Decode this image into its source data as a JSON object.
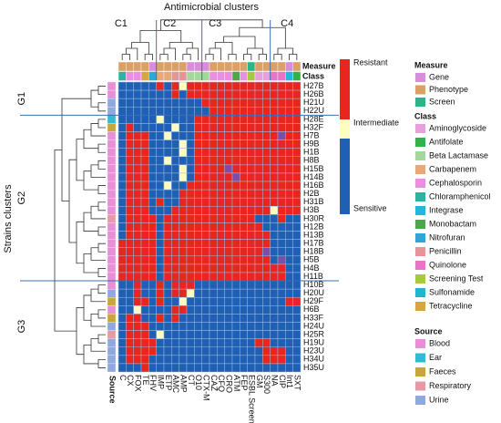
{
  "chart_data": {
    "type": "heatmap",
    "title": "Antimicrobial clusters",
    "y_title": "Strains clusters",
    "column_clusters": [
      "C1",
      "C2",
      "C3",
      "C4"
    ],
    "row_clusters": [
      "G1",
      "G2",
      "G3"
    ],
    "measure_label": "Measure",
    "class_label": "Class",
    "source_label": "Source",
    "scale_labels": [
      "Sensitive",
      "Intermediate",
      "Resistant"
    ],
    "cell_colors": [
      "#1f5fb4",
      "#fdfdc0",
      "#e8251f",
      "#7a4fa8"
    ],
    "legends": {
      "measure": {
        "title": "Measure",
        "items": [
          {
            "name": "Gene",
            "color": "#d98cd9"
          },
          {
            "name": "Phenotype",
            "color": "#dba066"
          },
          {
            "name": "Screen",
            "color": "#2bb589"
          }
        ]
      },
      "class": {
        "title": "Class",
        "items": [
          {
            "name": "Aminoglycoside",
            "color": "#e6a0dc"
          },
          {
            "name": "Antifolate",
            "color": "#2fb34a"
          },
          {
            "name": "Beta Lactamase",
            "color": "#a5d69a"
          },
          {
            "name": "Carbapenem",
            "color": "#e8a87c"
          },
          {
            "name": "Cephalosporin",
            "color": "#ea8fe0"
          },
          {
            "name": "Chloramphenicol",
            "color": "#2bb5a0"
          },
          {
            "name": "Integrase",
            "color": "#26b5e0"
          },
          {
            "name": "Monobactam",
            "color": "#4aa84a"
          },
          {
            "name": "Nitrofuran",
            "color": "#33a4d6"
          },
          {
            "name": "Penicillin",
            "color": "#e6949a"
          },
          {
            "name": "Quinolone",
            "color": "#e873c8"
          },
          {
            "name": "Screening Test",
            "color": "#a8c93c"
          },
          {
            "name": "Sulfonamide",
            "color": "#1fb8c8"
          },
          {
            "name": "Tetracycline",
            "color": "#d6a640"
          }
        ]
      },
      "source": {
        "title": "Source",
        "items": [
          {
            "name": "Blood",
            "color": "#e88fd8"
          },
          {
            "name": "Ear",
            "color": "#33b8d8"
          },
          {
            "name": "Faeces",
            "color": "#c9a63a"
          },
          {
            "name": "Respiratory",
            "color": "#e59aa6"
          },
          {
            "name": "Urine",
            "color": "#8fa8e0"
          }
        ]
      }
    },
    "columns": [
      {
        "label": "C",
        "measure": 1,
        "class": 5
      },
      {
        "label": "CX",
        "measure": 1,
        "class": 4
      },
      {
        "label": "FOX",
        "measure": 1,
        "class": 4
      },
      {
        "label": "TE",
        "measure": 1,
        "class": 13
      },
      {
        "label": "FHV",
        "measure": 0,
        "class": 8
      },
      {
        "label": "IMP",
        "measure": 1,
        "class": 3
      },
      {
        "label": "ETP",
        "measure": 1,
        "class": 3
      },
      {
        "label": "AMC",
        "measure": 1,
        "class": 9
      },
      {
        "label": "AMP",
        "measure": 1,
        "class": 9
      },
      {
        "label": "CT",
        "measure": 0,
        "class": 2
      },
      {
        "label": "O10",
        "measure": 0,
        "class": 2
      },
      {
        "label": "CTX-M",
        "measure": 0,
        "class": 2
      },
      {
        "label": "CAZ",
        "measure": 1,
        "class": 4
      },
      {
        "label": "CFQ",
        "measure": 1,
        "class": 4
      },
      {
        "label": "CRO",
        "measure": 1,
        "class": 4
      },
      {
        "label": "ATM",
        "measure": 1,
        "class": 7
      },
      {
        "label": "FEP",
        "measure": 1,
        "class": 4
      },
      {
        "label": "ESBL Screen",
        "measure": 2,
        "class": 11
      },
      {
        "label": "GM",
        "measure": 1,
        "class": 0
      },
      {
        "label": "S300",
        "measure": 1,
        "class": 0
      },
      {
        "label": "NA",
        "measure": 1,
        "class": 10
      },
      {
        "label": "CIP",
        "measure": 1,
        "class": 10
      },
      {
        "label": "Int1",
        "measure": 0,
        "class": 6
      },
      {
        "label": "SXT",
        "measure": 1,
        "class": 1
      }
    ],
    "rows": [
      {
        "label": "H27B",
        "source": 0,
        "cells": [
          0,
          0,
          0,
          0,
          0,
          2,
          0,
          2,
          1,
          2,
          2,
          2,
          2,
          2,
          2,
          2,
          2,
          2,
          2,
          2,
          2,
          2,
          2,
          2
        ]
      },
      {
        "label": "H26B",
        "source": 0,
        "cells": [
          0,
          0,
          0,
          0,
          0,
          0,
          0,
          2,
          0,
          2,
          2,
          2,
          2,
          2,
          2,
          2,
          2,
          2,
          2,
          2,
          2,
          2,
          2,
          2
        ]
      },
      {
        "label": "H21U",
        "source": 4,
        "cells": [
          0,
          0,
          0,
          0,
          0,
          0,
          0,
          0,
          0,
          0,
          0,
          2,
          2,
          2,
          2,
          2,
          2,
          2,
          2,
          2,
          2,
          2,
          2,
          2
        ]
      },
      {
        "label": "H22U",
        "source": 4,
        "cells": [
          0,
          0,
          0,
          0,
          0,
          0,
          0,
          0,
          0,
          0,
          0,
          0,
          2,
          2,
          2,
          2,
          2,
          2,
          2,
          2,
          2,
          2,
          2,
          2
        ]
      },
      {
        "label": "H28E",
        "source": 1,
        "cells": [
          0,
          0,
          0,
          0,
          0,
          1,
          0,
          0,
          0,
          0,
          2,
          2,
          2,
          2,
          2,
          2,
          2,
          2,
          2,
          2,
          2,
          2,
          2,
          2
        ]
      },
      {
        "label": "H32F",
        "source": 2,
        "cells": [
          0,
          2,
          0,
          0,
          0,
          0,
          0,
          1,
          0,
          0,
          2,
          2,
          2,
          2,
          2,
          2,
          2,
          2,
          2,
          2,
          2,
          2,
          2,
          2
        ]
      },
      {
        "label": "H7B",
        "source": 0,
        "cells": [
          0,
          2,
          2,
          2,
          0,
          0,
          1,
          0,
          0,
          0,
          2,
          2,
          2,
          2,
          2,
          2,
          2,
          2,
          2,
          2,
          2,
          3,
          2,
          2
        ]
      },
      {
        "label": "H9B",
        "source": 0,
        "cells": [
          0,
          2,
          2,
          2,
          0,
          0,
          0,
          0,
          1,
          0,
          2,
          2,
          2,
          2,
          2,
          2,
          2,
          2,
          2,
          2,
          2,
          2,
          2,
          2
        ]
      },
      {
        "label": "H1B",
        "source": 0,
        "cells": [
          0,
          2,
          2,
          2,
          0,
          0,
          0,
          0,
          1,
          0,
          2,
          2,
          2,
          2,
          2,
          2,
          2,
          2,
          2,
          2,
          2,
          2,
          2,
          2
        ]
      },
      {
        "label": "H8B",
        "source": 0,
        "cells": [
          0,
          2,
          2,
          2,
          0,
          0,
          1,
          0,
          0,
          0,
          2,
          2,
          2,
          2,
          2,
          2,
          2,
          2,
          2,
          2,
          2,
          2,
          2,
          2
        ]
      },
      {
        "label": "H15B",
        "source": 0,
        "cells": [
          0,
          2,
          2,
          2,
          0,
          0,
          0,
          0,
          1,
          0,
          2,
          2,
          2,
          2,
          3,
          2,
          2,
          2,
          2,
          2,
          2,
          2,
          2,
          2
        ]
      },
      {
        "label": "H14B",
        "source": 0,
        "cells": [
          0,
          2,
          2,
          2,
          0,
          0,
          0,
          0,
          1,
          0,
          2,
          2,
          2,
          2,
          2,
          3,
          2,
          2,
          2,
          2,
          2,
          2,
          2,
          2
        ]
      },
      {
        "label": "H16B",
        "source": 0,
        "cells": [
          0,
          2,
          2,
          2,
          0,
          0,
          1,
          0,
          0,
          2,
          2,
          2,
          2,
          2,
          2,
          2,
          2,
          2,
          2,
          2,
          2,
          2,
          2,
          2
        ]
      },
      {
        "label": "H2B",
        "source": 0,
        "cells": [
          0,
          2,
          2,
          2,
          0,
          0,
          0,
          0,
          2,
          2,
          2,
          2,
          2,
          2,
          2,
          2,
          2,
          2,
          2,
          2,
          2,
          2,
          2,
          2
        ]
      },
      {
        "label": "H31B",
        "source": 0,
        "cells": [
          0,
          2,
          2,
          2,
          0,
          2,
          0,
          0,
          2,
          2,
          2,
          2,
          2,
          2,
          2,
          2,
          2,
          2,
          2,
          2,
          2,
          2,
          2,
          2
        ]
      },
      {
        "label": "H3B",
        "source": 0,
        "cells": [
          0,
          2,
          2,
          2,
          0,
          0,
          0,
          2,
          2,
          2,
          2,
          2,
          2,
          2,
          2,
          2,
          2,
          2,
          2,
          2,
          1,
          2,
          2,
          2
        ]
      },
      {
        "label": "H30R",
        "source": 3,
        "cells": [
          0,
          2,
          2,
          2,
          2,
          0,
          2,
          2,
          2,
          2,
          2,
          2,
          2,
          2,
          2,
          2,
          2,
          2,
          0,
          0,
          0,
          2,
          0,
          0
        ]
      },
      {
        "label": "H12B",
        "source": 0,
        "cells": [
          0,
          2,
          2,
          2,
          2,
          0,
          2,
          2,
          2,
          2,
          2,
          2,
          2,
          2,
          2,
          2,
          2,
          2,
          2,
          0,
          0,
          0,
          0,
          0
        ]
      },
      {
        "label": "H13B",
        "source": 0,
        "cells": [
          0,
          2,
          2,
          2,
          2,
          0,
          2,
          2,
          2,
          2,
          2,
          2,
          2,
          2,
          2,
          2,
          2,
          2,
          2,
          2,
          0,
          0,
          0,
          0
        ]
      },
      {
        "label": "H17B",
        "source": 0,
        "cells": [
          2,
          2,
          2,
          2,
          2,
          0,
          2,
          2,
          2,
          2,
          2,
          2,
          2,
          2,
          2,
          2,
          2,
          2,
          2,
          2,
          0,
          0,
          0,
          0
        ]
      },
      {
        "label": "H18B",
        "source": 0,
        "cells": [
          2,
          2,
          2,
          2,
          2,
          0,
          2,
          2,
          2,
          2,
          2,
          2,
          2,
          2,
          2,
          2,
          2,
          2,
          2,
          3,
          0,
          0,
          0,
          0
        ]
      },
      {
        "label": "H5B",
        "source": 0,
        "cells": [
          2,
          2,
          2,
          2,
          2,
          0,
          2,
          2,
          2,
          2,
          2,
          2,
          2,
          2,
          2,
          2,
          2,
          2,
          2,
          2,
          0,
          3,
          0,
          0
        ]
      },
      {
        "label": "H4B",
        "source": 0,
        "cells": [
          2,
          2,
          2,
          2,
          2,
          0,
          2,
          2,
          2,
          2,
          2,
          2,
          2,
          2,
          2,
          2,
          2,
          2,
          2,
          2,
          2,
          2,
          0,
          0
        ]
      },
      {
        "label": "H11B",
        "source": 0,
        "cells": [
          2,
          2,
          2,
          2,
          2,
          0,
          2,
          2,
          2,
          2,
          2,
          2,
          2,
          2,
          2,
          2,
          2,
          2,
          2,
          2,
          2,
          2,
          0,
          0
        ]
      },
      {
        "label": "H10B",
        "source": 0,
        "cells": [
          0,
          0,
          2,
          0,
          0,
          2,
          0,
          2,
          2,
          2,
          0,
          0,
          0,
          0,
          0,
          0,
          0,
          0,
          0,
          0,
          0,
          0,
          0,
          0
        ]
      },
      {
        "label": "H20U",
        "source": 4,
        "cells": [
          0,
          0,
          2,
          0,
          0,
          2,
          0,
          2,
          2,
          1,
          0,
          0,
          0,
          0,
          0,
          0,
          0,
          0,
          0,
          0,
          0,
          0,
          0,
          0
        ]
      },
      {
        "label": "H29F",
        "source": 2,
        "cells": [
          0,
          0,
          2,
          2,
          0,
          2,
          0,
          0,
          1,
          0,
          0,
          0,
          0,
          0,
          0,
          0,
          0,
          0,
          0,
          0,
          0,
          0,
          2,
          2
        ]
      },
      {
        "label": "H6B",
        "source": 0,
        "cells": [
          0,
          0,
          1,
          0,
          0,
          0,
          0,
          2,
          2,
          0,
          0,
          0,
          0,
          0,
          0,
          0,
          0,
          0,
          0,
          0,
          0,
          0,
          0,
          0
        ]
      },
      {
        "label": "H33F",
        "source": 2,
        "cells": [
          0,
          2,
          2,
          0,
          0,
          2,
          0,
          2,
          0,
          0,
          0,
          0,
          0,
          0,
          0,
          0,
          0,
          0,
          0,
          0,
          0,
          0,
          0,
          0
        ]
      },
      {
        "label": "H24U",
        "source": 4,
        "cells": [
          0,
          2,
          2,
          2,
          0,
          0,
          0,
          0,
          0,
          0,
          0,
          0,
          0,
          0,
          0,
          0,
          0,
          0,
          0,
          0,
          0,
          0,
          0,
          0
        ]
      },
      {
        "label": "H25R",
        "source": 3,
        "cells": [
          0,
          2,
          2,
          2,
          0,
          1,
          0,
          0,
          0,
          0,
          0,
          0,
          0,
          0,
          0,
          0,
          0,
          0,
          0,
          0,
          0,
          0,
          0,
          0
        ]
      },
      {
        "label": "H19U",
        "source": 4,
        "cells": [
          0,
          2,
          2,
          2,
          2,
          0,
          0,
          0,
          0,
          0,
          0,
          0,
          0,
          0,
          0,
          0,
          0,
          0,
          2,
          2,
          0,
          0,
          0,
          0
        ]
      },
      {
        "label": "H23U",
        "source": 4,
        "cells": [
          0,
          2,
          2,
          2,
          2,
          0,
          0,
          0,
          0,
          0,
          0,
          0,
          0,
          0,
          0,
          0,
          0,
          0,
          0,
          2,
          2,
          2,
          0,
          0
        ]
      },
      {
        "label": "H34U",
        "source": 4,
        "cells": [
          0,
          2,
          2,
          2,
          0,
          0,
          0,
          0,
          0,
          0,
          0,
          0,
          0,
          0,
          0,
          0,
          0,
          0,
          0,
          2,
          2,
          2,
          0,
          0
        ]
      },
      {
        "label": "H35U",
        "source": 4,
        "cells": [
          0,
          0,
          0,
          2,
          0,
          0,
          0,
          0,
          0,
          0,
          0,
          0,
          0,
          0,
          0,
          0,
          0,
          0,
          0,
          0,
          0,
          0,
          0,
          0
        ]
      }
    ]
  }
}
